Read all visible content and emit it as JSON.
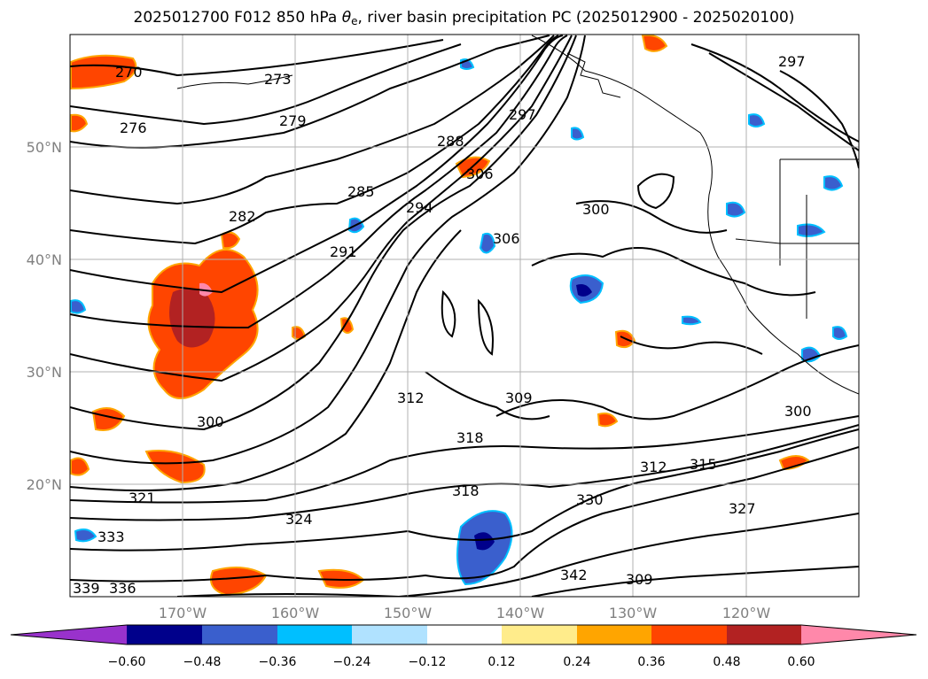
{
  "title": {
    "prefix": "2025012700 F012 850 hPa ",
    "theta": "θ",
    "sub": "e",
    "suffix": ", river basin precipitation PC (2025012900 - 2025020100)"
  },
  "map": {
    "lon_ticks": [
      "170°W",
      "160°W",
      "150°W",
      "140°W",
      "130°W",
      "120°W"
    ],
    "lat_ticks": [
      "50°N",
      "40°N",
      "30°N",
      "20°N"
    ],
    "contour_labels": [
      "270",
      "276",
      "273",
      "279",
      "282",
      "285",
      "288",
      "291",
      "294",
      "297",
      "297",
      "300",
      "306",
      "309",
      "312",
      "315",
      "318",
      "324",
      "327",
      "330",
      "333",
      "336",
      "339",
      "342",
      "300",
      "300",
      "321",
      "318",
      "312",
      "306",
      "309"
    ]
  },
  "colorbar": {
    "tick_labels": [
      "−0.60",
      "−0.48",
      "−0.36",
      "−0.24",
      "−0.12",
      "0.12",
      "0.24",
      "0.36",
      "0.48",
      "0.60"
    ],
    "colors": [
      "#9932cc",
      "#00008b",
      "#3a5fcd",
      "#00bfff",
      "#b0e2ff",
      "#ffffff",
      "#ffec8b",
      "#ffa500",
      "#ff4500",
      "#b22222",
      "#ff88aa"
    ]
  },
  "legend_levels": [
    -0.6,
    -0.48,
    -0.36,
    -0.24,
    -0.12,
    0.12,
    0.24,
    0.36,
    0.48,
    0.6
  ]
}
